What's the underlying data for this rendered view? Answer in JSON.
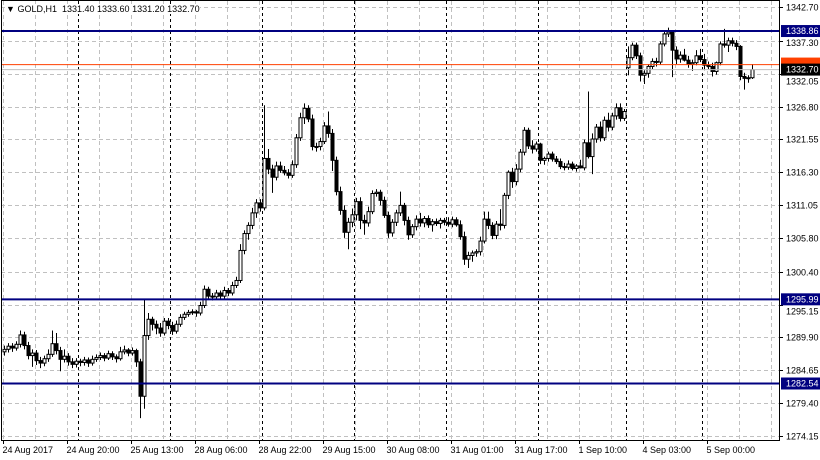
{
  "header": {
    "collapse_icon": "triangle-down-icon",
    "symbol": "GOLD,H1",
    "open": "1331.40",
    "high": "1333.60",
    "low": "1331.20",
    "close": "1332.70"
  },
  "chart_data": {
    "type": "candlestick",
    "symbol": "GOLD",
    "timeframe": "H1",
    "ylim": [
      1274.15,
      1342.7
    ],
    "grid": true,
    "y_ticks": [
      "1342.70",
      "1337.30",
      "1332.05",
      "1326.80",
      "1321.55",
      "1316.30",
      "1311.05",
      "1305.80",
      "1300.40",
      "1295.15",
      "1289.90",
      "1284.65",
      "1279.40",
      "1274.15"
    ],
    "x_tick_labels": [
      "24 Aug 2017",
      "24 Aug 20:00",
      "25 Aug 13:00",
      "28 Aug 06:00",
      "28 Aug 22:00",
      "29 Aug 15:00",
      "30 Aug 08:00",
      "31 Aug 01:00",
      "31 Aug 17:00",
      "1 Sep 10:00",
      "4 Sep 03:00",
      "5 Sep 00:00"
    ],
    "period_separator_bars": [
      19,
      42,
      65,
      88,
      111,
      134,
      156,
      175
    ],
    "horizontal_lines": [
      {
        "price": 1338.86,
        "label": "1338.86",
        "color": "#000080"
      },
      {
        "price": 1295.99,
        "label": "1295.99",
        "color": "#000080"
      },
      {
        "price": 1282.54,
        "label": "1282.54",
        "color": "#000080"
      }
    ],
    "bid": {
      "price": 1332.7,
      "label": "1332.70",
      "color": "#c0c0c0"
    },
    "ask": {
      "price": 1333.5,
      "color": "#ff4000"
    },
    "colors": {
      "bull_body": "#ffffff",
      "bear_body": "#000000",
      "outline": "#000000",
      "grid": "#c0c0c0"
    },
    "candles": [
      [
        1287.6,
        1288.6,
        1287.0,
        1288.0
      ],
      [
        1288.0,
        1289.0,
        1287.5,
        1288.5
      ],
      [
        1288.5,
        1289.0,
        1287.6,
        1288.2
      ],
      [
        1288.2,
        1289.3,
        1287.8,
        1288.8
      ],
      [
        1288.8,
        1291.0,
        1288.3,
        1290.3
      ],
      [
        1290.3,
        1290.8,
        1288.0,
        1288.6
      ],
      [
        1288.6,
        1289.2,
        1286.4,
        1287.0
      ],
      [
        1287.0,
        1288.0,
        1285.2,
        1287.4
      ],
      [
        1287.4,
        1287.9,
        1285.5,
        1286.2
      ],
      [
        1286.2,
        1286.8,
        1285.0,
        1285.8
      ],
      [
        1285.8,
        1287.0,
        1285.3,
        1286.5
      ],
      [
        1286.5,
        1288.0,
        1286.0,
        1287.2
      ],
      [
        1287.2,
        1291.0,
        1286.8,
        1288.9
      ],
      [
        1288.9,
        1290.6,
        1287.2,
        1287.8
      ],
      [
        1287.8,
        1288.4,
        1284.5,
        1286.4
      ],
      [
        1286.4,
        1288.0,
        1285.9,
        1286.9
      ],
      [
        1286.9,
        1287.4,
        1285.4,
        1286.0
      ],
      [
        1286.0,
        1286.6,
        1285.0,
        1285.6
      ],
      [
        1285.6,
        1286.6,
        1285.1,
        1286.1
      ],
      [
        1286.1,
        1286.5,
        1285.3,
        1285.9
      ],
      [
        1285.9,
        1286.8,
        1285.4,
        1286.3
      ],
      [
        1286.3,
        1286.7,
        1285.2,
        1285.8
      ],
      [
        1285.8,
        1287.0,
        1285.4,
        1286.4
      ],
      [
        1286.4,
        1287.2,
        1286.0,
        1286.7
      ],
      [
        1286.7,
        1287.5,
        1286.3,
        1287.0
      ],
      [
        1287.0,
        1287.4,
        1286.1,
        1286.6
      ],
      [
        1286.6,
        1287.8,
        1286.3,
        1287.3
      ],
      [
        1287.3,
        1287.7,
        1286.3,
        1286.8
      ],
      [
        1286.8,
        1287.2,
        1285.9,
        1286.5
      ],
      [
        1286.5,
        1288.4,
        1286.2,
        1287.6
      ],
      [
        1287.6,
        1288.6,
        1287.2,
        1287.9
      ],
      [
        1287.9,
        1288.2,
        1286.9,
        1287.4
      ],
      [
        1287.4,
        1288.3,
        1287.0,
        1287.8
      ],
      [
        1287.8,
        1288.1,
        1285.2,
        1286.0
      ],
      [
        1286.0,
        1286.5,
        1277.0,
        1280.5
      ],
      [
        1280.5,
        1296.0,
        1278.5,
        1290.2
      ],
      [
        1290.2,
        1293.8,
        1289.5,
        1292.8
      ],
      [
        1292.8,
        1293.2,
        1291.0,
        1292.0
      ],
      [
        1292.0,
        1292.6,
        1290.4,
        1291.4
      ],
      [
        1291.4,
        1292.2,
        1290.0,
        1290.6
      ],
      [
        1290.6,
        1293.0,
        1290.2,
        1292.5
      ],
      [
        1292.5,
        1293.0,
        1291.2,
        1291.8
      ],
      [
        1291.8,
        1292.4,
        1290.3,
        1290.9
      ],
      [
        1290.9,
        1292.6,
        1290.5,
        1292.0
      ],
      [
        1292.0,
        1293.6,
        1291.6,
        1293.1
      ],
      [
        1293.1,
        1294.0,
        1292.7,
        1293.6
      ],
      [
        1293.6,
        1294.3,
        1293.2,
        1293.9
      ],
      [
        1293.9,
        1294.4,
        1293.5,
        1294.0
      ],
      [
        1294.0,
        1294.3,
        1293.2,
        1293.8
      ],
      [
        1293.8,
        1295.6,
        1293.4,
        1295.0
      ],
      [
        1295.0,
        1298.2,
        1294.6,
        1297.6
      ],
      [
        1297.6,
        1298.0,
        1296.0,
        1296.5
      ],
      [
        1296.5,
        1297.0,
        1295.8,
        1296.4
      ],
      [
        1296.4,
        1297.5,
        1296.0,
        1297.0
      ],
      [
        1297.0,
        1297.4,
        1296.0,
        1296.5
      ],
      [
        1296.5,
        1298.0,
        1296.1,
        1297.4
      ],
      [
        1297.4,
        1297.8,
        1296.5,
        1297.0
      ],
      [
        1297.0,
        1298.8,
        1296.6,
        1298.2
      ],
      [
        1298.2,
        1299.6,
        1297.8,
        1299.0
      ],
      [
        1299.0,
        1304.8,
        1298.6,
        1303.8
      ],
      [
        1303.8,
        1307.0,
        1303.2,
        1306.5
      ],
      [
        1306.5,
        1308.3,
        1305.5,
        1307.8
      ],
      [
        1307.8,
        1310.6,
        1307.2,
        1309.8
      ],
      [
        1309.8,
        1312.0,
        1309.0,
        1311.4
      ],
      [
        1311.4,
        1312.0,
        1310.0,
        1310.6
      ],
      [
        1310.6,
        1327.0,
        1310.2,
        1318.5
      ],
      [
        1318.5,
        1320.0,
        1316.0,
        1316.8
      ],
      [
        1316.8,
        1317.5,
        1313.0,
        1315.5
      ],
      [
        1315.5,
        1318.0,
        1315.0,
        1317.3
      ],
      [
        1317.3,
        1318.0,
        1316.2,
        1316.6
      ],
      [
        1316.6,
        1317.3,
        1315.8,
        1316.2
      ],
      [
        1316.2,
        1316.8,
        1315.3,
        1315.8
      ],
      [
        1315.8,
        1318.2,
        1315.4,
        1317.5
      ],
      [
        1317.5,
        1322.4,
        1317.0,
        1321.8
      ],
      [
        1321.8,
        1325.8,
        1321.3,
        1325.0
      ],
      [
        1325.0,
        1327.3,
        1324.0,
        1326.5
      ],
      [
        1326.5,
        1327.0,
        1324.3,
        1324.8
      ],
      [
        1324.8,
        1325.5,
        1319.8,
        1320.4
      ],
      [
        1320.4,
        1321.0,
        1319.6,
        1320.4
      ],
      [
        1320.4,
        1321.8,
        1319.8,
        1321.2
      ],
      [
        1321.2,
        1324.3,
        1320.8,
        1323.7
      ],
      [
        1323.7,
        1326.0,
        1321.8,
        1322.5
      ],
      [
        1322.5,
        1323.2,
        1316.5,
        1318.2
      ],
      [
        1318.2,
        1318.8,
        1312.6,
        1313.2
      ],
      [
        1313.2,
        1314.0,
        1309.5,
        1310.2
      ],
      [
        1310.2,
        1311.0,
        1305.8,
        1306.7
      ],
      [
        1306.7,
        1309.0,
        1304.0,
        1308.3
      ],
      [
        1308.3,
        1310.5,
        1307.5,
        1309.5
      ],
      [
        1309.5,
        1312.2,
        1308.6,
        1311.6
      ],
      [
        1311.6,
        1312.3,
        1307.2,
        1308.6
      ],
      [
        1308.6,
        1309.5,
        1306.3,
        1308.2
      ],
      [
        1308.2,
        1310.8,
        1307.6,
        1310.0
      ],
      [
        1310.0,
        1313.4,
        1309.6,
        1312.9
      ],
      [
        1312.9,
        1313.6,
        1312.4,
        1313.1
      ],
      [
        1313.1,
        1313.5,
        1311.0,
        1311.8
      ],
      [
        1311.8,
        1312.4,
        1309.0,
        1309.4
      ],
      [
        1309.4,
        1310.0,
        1305.8,
        1306.6
      ],
      [
        1306.6,
        1308.8,
        1306.0,
        1308.3
      ],
      [
        1308.3,
        1310.3,
        1307.7,
        1309.8
      ],
      [
        1309.8,
        1313.2,
        1309.3,
        1311.0
      ],
      [
        1311.0,
        1311.4,
        1307.8,
        1308.6
      ],
      [
        1308.6,
        1309.2,
        1305.5,
        1306.3
      ],
      [
        1306.3,
        1308.0,
        1305.8,
        1307.6
      ],
      [
        1307.6,
        1309.4,
        1307.0,
        1308.8
      ],
      [
        1308.8,
        1309.8,
        1307.6,
        1308.2
      ],
      [
        1308.2,
        1309.3,
        1307.5,
        1308.9
      ],
      [
        1308.9,
        1309.4,
        1307.4,
        1307.9
      ],
      [
        1307.9,
        1308.8,
        1306.8,
        1308.4
      ],
      [
        1308.4,
        1308.9,
        1307.7,
        1308.1
      ],
      [
        1308.1,
        1309.0,
        1307.3,
        1308.6
      ],
      [
        1308.6,
        1309.0,
        1307.8,
        1308.3
      ],
      [
        1308.3,
        1309.1,
        1307.6,
        1308.0
      ],
      [
        1308.0,
        1309.2,
        1307.5,
        1308.7
      ],
      [
        1308.7,
        1309.1,
        1307.6,
        1307.9
      ],
      [
        1307.9,
        1308.6,
        1305.5,
        1306.0
      ],
      [
        1306.0,
        1306.8,
        1301.5,
        1302.4
      ],
      [
        1302.4,
        1303.6,
        1301.0,
        1303.0
      ],
      [
        1303.0,
        1303.8,
        1302.0,
        1303.4
      ],
      [
        1303.4,
        1304.0,
        1302.8,
        1303.6
      ],
      [
        1303.6,
        1306.0,
        1303.0,
        1305.3
      ],
      [
        1305.3,
        1310.0,
        1304.9,
        1308.8
      ],
      [
        1308.8,
        1310.0,
        1307.2,
        1307.8
      ],
      [
        1307.8,
        1308.3,
        1305.6,
        1306.2
      ],
      [
        1306.2,
        1308.5,
        1305.6,
        1308.0
      ],
      [
        1308.0,
        1310.4,
        1307.0,
        1307.8
      ],
      [
        1307.8,
        1313.0,
        1307.3,
        1312.6
      ],
      [
        1312.6,
        1316.6,
        1312.0,
        1316.3
      ],
      [
        1316.3,
        1317.0,
        1313.8,
        1314.8
      ],
      [
        1314.8,
        1317.6,
        1314.2,
        1316.8
      ],
      [
        1316.8,
        1320.0,
        1316.3,
        1319.5
      ],
      [
        1319.5,
        1323.5,
        1319.0,
        1323.0
      ],
      [
        1323.0,
        1323.4,
        1320.0,
        1320.5
      ],
      [
        1320.5,
        1321.4,
        1319.3,
        1320.0
      ],
      [
        1320.0,
        1321.2,
        1319.6,
        1320.8
      ],
      [
        1320.8,
        1321.0,
        1317.6,
        1318.2
      ],
      [
        1318.2,
        1318.8,
        1317.5,
        1318.5
      ],
      [
        1318.5,
        1319.6,
        1318.0,
        1319.2
      ],
      [
        1319.2,
        1319.6,
        1318.0,
        1318.4
      ],
      [
        1318.4,
        1318.9,
        1317.6,
        1318.0
      ],
      [
        1318.0,
        1318.5,
        1316.8,
        1317.2
      ],
      [
        1317.2,
        1317.8,
        1316.6,
        1317.1
      ],
      [
        1317.1,
        1318.2,
        1316.7,
        1317.6
      ],
      [
        1317.6,
        1318.0,
        1316.6,
        1316.9
      ],
      [
        1316.9,
        1317.6,
        1316.4,
        1317.3
      ],
      [
        1317.3,
        1318.3,
        1316.9,
        1317.0
      ],
      [
        1317.0,
        1321.5,
        1316.6,
        1321.0
      ],
      [
        1321.0,
        1329.2,
        1318.5,
        1318.8
      ],
      [
        1318.8,
        1322.5,
        1316.0,
        1321.6
      ],
      [
        1321.6,
        1324.0,
        1321.0,
        1323.5
      ],
      [
        1323.5,
        1324.4,
        1321.2,
        1321.8
      ],
      [
        1321.8,
        1325.2,
        1321.3,
        1324.6
      ],
      [
        1324.6,
        1325.8,
        1322.8,
        1323.5
      ],
      [
        1323.5,
        1325.8,
        1323.0,
        1325.3
      ],
      [
        1325.3,
        1327.3,
        1324.7,
        1326.6
      ],
      [
        1326.6,
        1327.3,
        1324.4,
        1324.9
      ],
      [
        1324.9,
        1326.4,
        1324.5,
        1326.0
      ],
      [
        1333.0,
        1336.4,
        1331.8,
        1334.6
      ],
      [
        1334.6,
        1337.0,
        1334.2,
        1336.6
      ],
      [
        1336.6,
        1337.0,
        1334.4,
        1334.9
      ],
      [
        1334.9,
        1335.4,
        1330.8,
        1331.8
      ],
      [
        1331.8,
        1332.6,
        1330.4,
        1332.1
      ],
      [
        1332.1,
        1333.6,
        1331.4,
        1333.2
      ],
      [
        1333.2,
        1334.5,
        1332.8,
        1334.0
      ],
      [
        1334.0,
        1334.6,
        1333.2,
        1333.9
      ],
      [
        1333.9,
        1337.2,
        1333.5,
        1336.8
      ],
      [
        1336.8,
        1338.8,
        1336.4,
        1338.4
      ],
      [
        1338.4,
        1339.4,
        1337.9,
        1338.7
      ],
      [
        1338.7,
        1339.0,
        1331.5,
        1335.8
      ],
      [
        1335.8,
        1336.4,
        1333.6,
        1334.4
      ],
      [
        1334.4,
        1335.6,
        1333.8,
        1335.0
      ],
      [
        1335.0,
        1336.0,
        1334.0,
        1334.2
      ],
      [
        1334.2,
        1334.9,
        1333.0,
        1333.6
      ],
      [
        1333.6,
        1334.3,
        1332.5,
        1333.8
      ],
      [
        1333.8,
        1335.8,
        1333.4,
        1334.9
      ],
      [
        1334.9,
        1336.0,
        1333.9,
        1334.3
      ],
      [
        1334.3,
        1335.2,
        1332.6,
        1333.4
      ],
      [
        1333.4,
        1334.0,
        1332.8,
        1333.2
      ],
      [
        1333.2,
        1333.8,
        1331.6,
        1332.4
      ],
      [
        1332.4,
        1334.0,
        1331.9,
        1333.8
      ],
      [
        1333.8,
        1337.2,
        1333.4,
        1336.8
      ],
      [
        1336.8,
        1339.2,
        1336.2,
        1336.6
      ],
      [
        1336.6,
        1337.8,
        1335.5,
        1337.3
      ],
      [
        1337.3,
        1337.8,
        1336.4,
        1336.9
      ],
      [
        1336.9,
        1337.4,
        1335.8,
        1336.4
      ],
      [
        1336.4,
        1336.6,
        1331.0,
        1331.6
      ],
      [
        1331.6,
        1332.2,
        1329.5,
        1331.3
      ],
      [
        1331.3,
        1331.8,
        1330.6,
        1331.4
      ],
      [
        1331.4,
        1333.6,
        1331.2,
        1332.7
      ]
    ]
  }
}
